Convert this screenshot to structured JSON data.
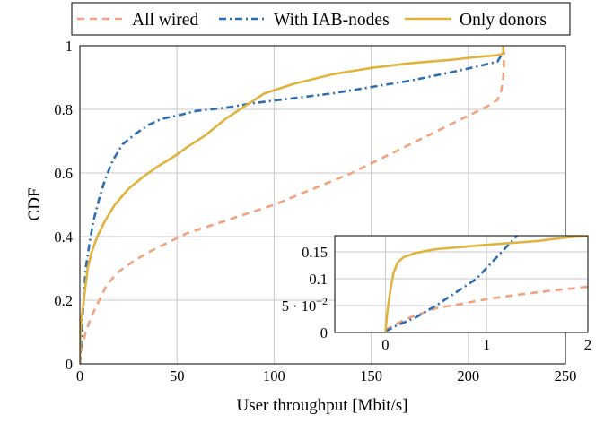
{
  "chart_data": [
    {
      "type": "line",
      "title": "",
      "xlabel": "User throughput [Mbit/s]",
      "ylabel": "CDF",
      "xlim": [
        0,
        250
      ],
      "ylim": [
        0,
        1
      ],
      "xticks": [
        0,
        50,
        100,
        150,
        200,
        250
      ],
      "yticks": [
        0,
        0.2,
        0.4,
        0.6,
        0.8,
        1
      ],
      "grid": true,
      "legend": "top-outside",
      "series": [
        {
          "name": "All wired",
          "color": "#f0a37e",
          "style": "dashed",
          "points": [
            [
              0,
              0
            ],
            [
              0.3,
              0.02
            ],
            [
              1,
              0.05
            ],
            [
              3,
              0.1
            ],
            [
              6,
              0.15
            ],
            [
              10,
              0.2
            ],
            [
              14,
              0.25
            ],
            [
              20,
              0.29
            ],
            [
              27,
              0.32
            ],
            [
              35,
              0.35
            ],
            [
              45,
              0.38
            ],
            [
              55,
              0.41
            ],
            [
              70,
              0.44
            ],
            [
              85,
              0.47
            ],
            [
              100,
              0.5
            ],
            [
              120,
              0.55
            ],
            [
              140,
              0.6
            ],
            [
              160,
              0.66
            ],
            [
              180,
              0.72
            ],
            [
              200,
              0.78
            ],
            [
              210,
              0.81
            ],
            [
              215,
              0.83
            ],
            [
              217,
              0.86
            ],
            [
              218,
              0.9
            ],
            [
              218.5,
              0.98
            ]
          ]
        },
        {
          "name": "With IAB-nodes",
          "color": "#2f6db1",
          "style": "dashdot",
          "points": [
            [
              0,
              0
            ],
            [
              0.5,
              0.05
            ],
            [
              1,
              0.12
            ],
            [
              2,
              0.2
            ],
            [
              3,
              0.3
            ],
            [
              5,
              0.38
            ],
            [
              7,
              0.45
            ],
            [
              10,
              0.52
            ],
            [
              13,
              0.58
            ],
            [
              17,
              0.64
            ],
            [
              22,
              0.69
            ],
            [
              28,
              0.72
            ],
            [
              35,
              0.75
            ],
            [
              42,
              0.77
            ],
            [
              50,
              0.78
            ],
            [
              60,
              0.795
            ],
            [
              75,
              0.805
            ],
            [
              90,
              0.82
            ],
            [
              110,
              0.835
            ],
            [
              130,
              0.85
            ],
            [
              150,
              0.87
            ],
            [
              170,
              0.89
            ],
            [
              190,
              0.915
            ],
            [
              205,
              0.935
            ],
            [
              215,
              0.95
            ],
            [
              217,
              0.97
            ],
            [
              218,
              0.98
            ]
          ]
        },
        {
          "name": "Only donors",
          "color": "#e0b23e",
          "style": "solid",
          "points": [
            [
              0,
              0
            ],
            [
              0.1,
              0.05
            ],
            [
              0.3,
              0.1
            ],
            [
              1,
              0.15
            ],
            [
              2,
              0.2
            ],
            [
              4,
              0.3
            ],
            [
              6,
              0.35
            ],
            [
              9,
              0.4
            ],
            [
              13,
              0.45
            ],
            [
              18,
              0.5
            ],
            [
              25,
              0.55
            ],
            [
              33,
              0.59
            ],
            [
              40,
              0.62
            ],
            [
              48,
              0.65
            ],
            [
              55,
              0.68
            ],
            [
              65,
              0.72
            ],
            [
              75,
              0.77
            ],
            [
              85,
              0.81
            ],
            [
              95,
              0.85
            ],
            [
              110,
              0.88
            ],
            [
              130,
              0.91
            ],
            [
              150,
              0.93
            ],
            [
              170,
              0.945
            ],
            [
              190,
              0.955
            ],
            [
              205,
              0.965
            ],
            [
              215,
              0.97
            ],
            [
              218,
              0.975
            ],
            [
              218,
              1.0
            ]
          ]
        }
      ]
    },
    {
      "type": "line",
      "title": "",
      "role": "inset",
      "xlim": [
        -0.5,
        2
      ],
      "ylim": [
        0,
        0.18
      ],
      "xticks": [
        0,
        1,
        2
      ],
      "yticks": [
        0,
        0.05,
        0.1,
        0.15
      ],
      "ytick_labels": [
        "0",
        "5 · 10",
        "0.1",
        "0.15"
      ],
      "ytick_exponent": "−2",
      "grid": true,
      "series": [
        {
          "name": "All wired",
          "color": "#f0a37e",
          "style": "dashed",
          "points": [
            [
              0,
              0.005
            ],
            [
              0.1,
              0.015
            ],
            [
              0.2,
              0.025
            ],
            [
              0.35,
              0.035
            ],
            [
              0.5,
              0.045
            ],
            [
              0.8,
              0.055
            ],
            [
              1.0,
              0.062
            ],
            [
              1.3,
              0.07
            ],
            [
              1.6,
              0.077
            ],
            [
              2.0,
              0.085
            ]
          ]
        },
        {
          "name": "With IAB-nodes",
          "color": "#2f6db1",
          "style": "dashdot",
          "points": [
            [
              0,
              0.002
            ],
            [
              0.1,
              0.012
            ],
            [
              0.3,
              0.028
            ],
            [
              0.5,
              0.05
            ],
            [
              0.7,
              0.075
            ],
            [
              0.9,
              0.1
            ],
            [
              1.05,
              0.13
            ],
            [
              1.2,
              0.16
            ],
            [
              1.3,
              0.18
            ]
          ]
        },
        {
          "name": "Only donors",
          "color": "#e0b23e",
          "style": "solid",
          "points": [
            [
              0,
              0
            ],
            [
              0.02,
              0.04
            ],
            [
              0.05,
              0.08
            ],
            [
              0.08,
              0.11
            ],
            [
              0.12,
              0.13
            ],
            [
              0.18,
              0.14
            ],
            [
              0.3,
              0.148
            ],
            [
              0.5,
              0.155
            ],
            [
              1.0,
              0.163
            ],
            [
              1.5,
              0.17
            ],
            [
              1.8,
              0.177
            ],
            [
              2.0,
              0.18
            ]
          ]
        }
      ]
    }
  ]
}
